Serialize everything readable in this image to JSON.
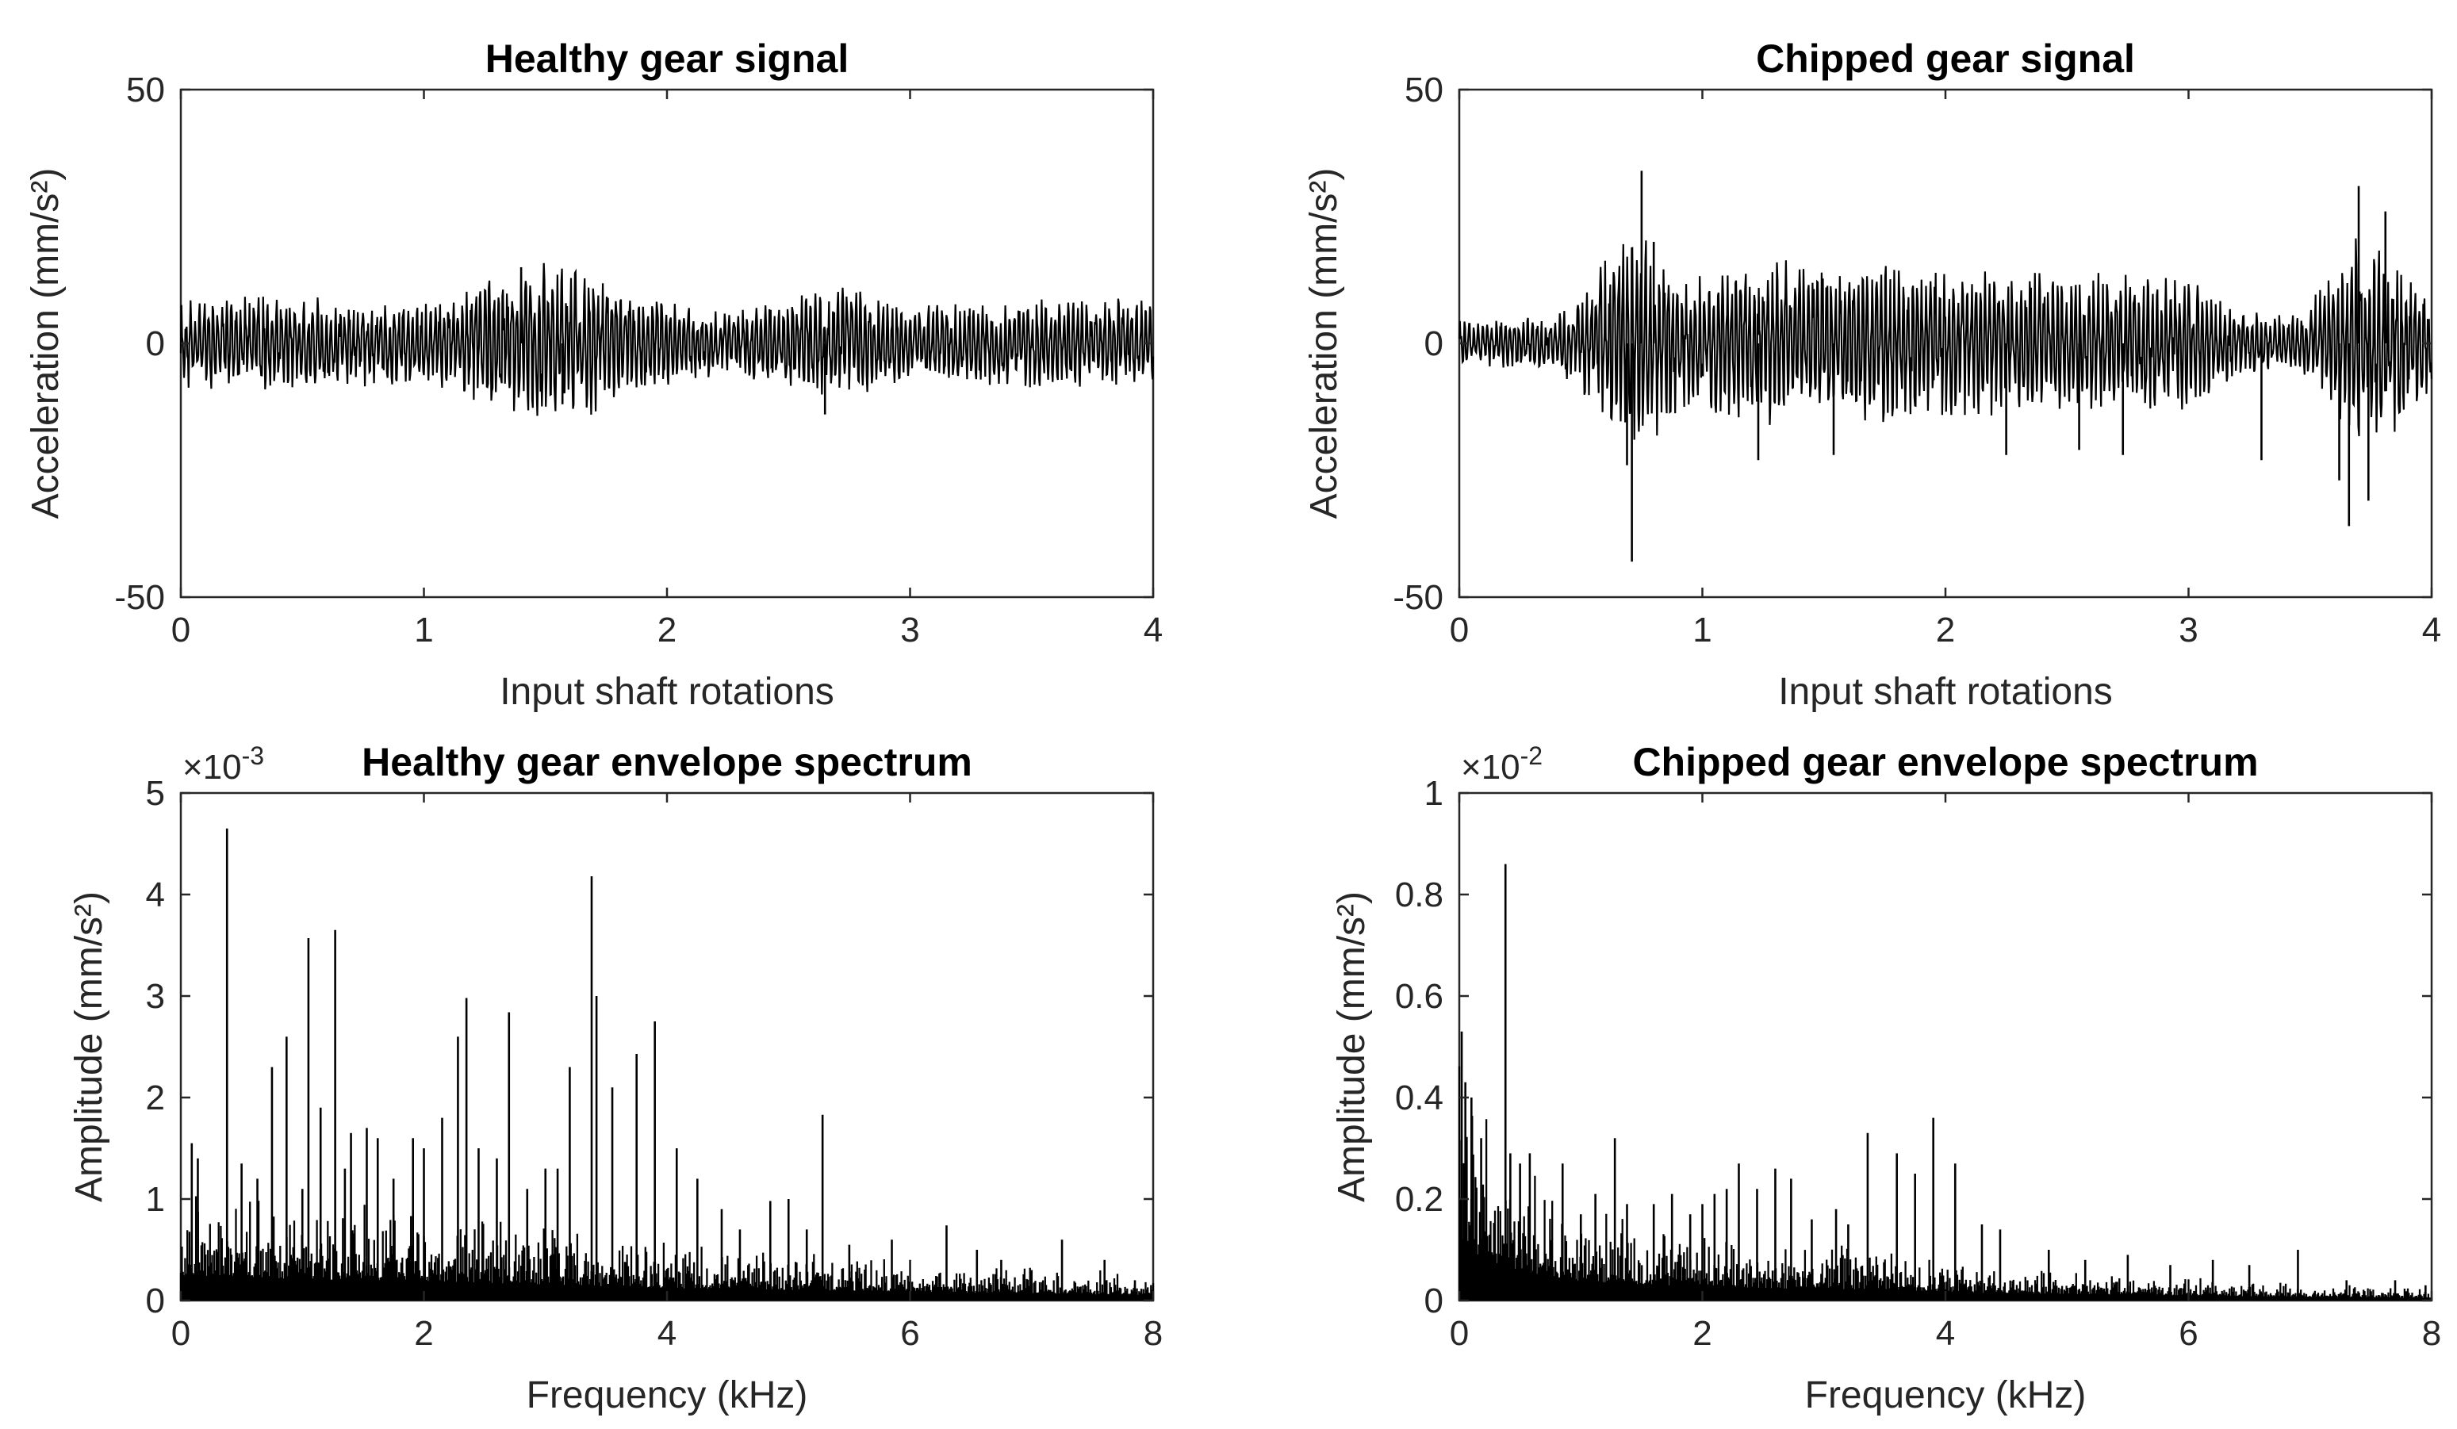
{
  "colors": {
    "trace": "#000000",
    "axis": "#262626",
    "background": "#ffffff"
  },
  "chart_data": [
    {
      "id": "healthy-signal",
      "type": "line",
      "title": "Healthy gear signal",
      "xlabel": "Input shaft rotations",
      "ylabel": "Acceleration (mm/s²)",
      "xlim": [
        0,
        4
      ],
      "ylim": [
        -50,
        50
      ],
      "xticks": [
        0,
        1,
        2,
        3,
        4
      ],
      "yticks": [
        -50,
        0,
        50
      ],
      "ytick_labels": [
        "-50",
        "0",
        "50"
      ],
      "exponent": "",
      "signal": {
        "envelope": [
          [
            0,
            8
          ],
          [
            0.5,
            9
          ],
          [
            1.0,
            7
          ],
          [
            1.3,
            12
          ],
          [
            1.5,
            15
          ],
          [
            1.7,
            13
          ],
          [
            1.9,
            9
          ],
          [
            2.2,
            6
          ],
          [
            2.5,
            8
          ],
          [
            2.7,
            11
          ],
          [
            3.0,
            7
          ],
          [
            3.5,
            8
          ],
          [
            4.0,
            8
          ]
        ],
        "spikes": [
          [
            1.57,
            -12
          ],
          [
            2.65,
            -14
          ],
          [
            1.4,
            15
          ]
        ]
      }
    },
    {
      "id": "chipped-signal",
      "type": "line",
      "title": "Chipped gear signal",
      "xlabel": "Input shaft rotations",
      "ylabel": "Acceleration (mm/s²)",
      "xlim": [
        0,
        4
      ],
      "ylim": [
        -50,
        50
      ],
      "xticks": [
        0,
        1,
        2,
        3,
        4
      ],
      "yticks": [
        -50,
        0,
        50
      ],
      "ytick_labels": [
        "-50",
        "0",
        "50"
      ],
      "exponent": "",
      "signal": {
        "envelope": [
          [
            0,
            4
          ],
          [
            0.4,
            5
          ],
          [
            0.55,
            12
          ],
          [
            0.7,
            22
          ],
          [
            0.8,
            18
          ],
          [
            0.95,
            12
          ],
          [
            1.2,
            16
          ],
          [
            1.5,
            15
          ],
          [
            2.0,
            14
          ],
          [
            2.5,
            13
          ],
          [
            3.0,
            12
          ],
          [
            3.2,
            6
          ],
          [
            3.45,
            5
          ],
          [
            3.6,
            13
          ],
          [
            3.7,
            20
          ],
          [
            3.85,
            16
          ],
          [
            4.0,
            8
          ]
        ],
        "spikes": [
          [
            0.71,
            -43
          ],
          [
            0.75,
            34
          ],
          [
            0.69,
            -24
          ],
          [
            0.8,
            20
          ],
          [
            1.23,
            -23
          ],
          [
            1.54,
            -22
          ],
          [
            2.25,
            -22
          ],
          [
            2.55,
            -21
          ],
          [
            2.73,
            -22
          ],
          [
            3.3,
            -23
          ],
          [
            3.66,
            -36
          ],
          [
            3.7,
            31
          ],
          [
            3.74,
            -31
          ],
          [
            3.62,
            -27
          ],
          [
            3.81,
            26
          ]
        ]
      }
    },
    {
      "id": "healthy-envelope",
      "type": "line",
      "title": "Healthy gear envelope spectrum",
      "xlabel": "Frequency (kHz)",
      "ylabel": "Amplitude (mm/s²)",
      "xlim": [
        0,
        8
      ],
      "ylim": [
        0,
        0.005
      ],
      "xticks": [
        0,
        2,
        4,
        6,
        8
      ],
      "yticks": [
        0,
        0.001,
        0.002,
        0.003,
        0.004,
        0.005
      ],
      "ytick_labels": [
        "0",
        "1",
        "2",
        "3",
        "4",
        "5"
      ],
      "exponent": "×10",
      "exponent_power": "-3",
      "noise_floor": [
        [
          0,
          0.0007
        ],
        [
          1,
          0.0006
        ],
        [
          2,
          0.00055
        ],
        [
          3,
          0.00045
        ],
        [
          4,
          0.00035
        ],
        [
          5,
          0.0003
        ],
        [
          6,
          0.00025
        ],
        [
          7,
          0.0002
        ],
        [
          8,
          0.00015
        ]
      ],
      "peaks": [
        [
          0.09,
          0.00155
        ],
        [
          0.14,
          0.0014
        ],
        [
          0.38,
          0.00465
        ],
        [
          0.5,
          0.00135
        ],
        [
          0.63,
          0.0012
        ],
        [
          0.75,
          0.0023
        ],
        [
          0.87,
          0.0026
        ],
        [
          1.0,
          0.0011
        ],
        [
          1.05,
          0.00357
        ],
        [
          1.15,
          0.0019
        ],
        [
          1.27,
          0.00365
        ],
        [
          1.35,
          0.0013
        ],
        [
          1.4,
          0.00165
        ],
        [
          1.53,
          0.0017
        ],
        [
          1.62,
          0.0016
        ],
        [
          1.75,
          0.0012
        ],
        [
          1.91,
          0.0016
        ],
        [
          2.0,
          0.0015
        ],
        [
          2.15,
          0.0018
        ],
        [
          2.28,
          0.0026
        ],
        [
          2.35,
          0.00298
        ],
        [
          2.45,
          0.0015
        ],
        [
          2.6,
          0.0014
        ],
        [
          2.7,
          0.00284
        ],
        [
          2.85,
          0.0011
        ],
        [
          3.0,
          0.0013
        ],
        [
          3.1,
          0.0013
        ],
        [
          3.2,
          0.0023
        ],
        [
          3.38,
          0.00418
        ],
        [
          3.42,
          0.003
        ],
        [
          3.55,
          0.0021
        ],
        [
          3.75,
          0.00243
        ],
        [
          3.9,
          0.00275
        ],
        [
          4.08,
          0.0015
        ],
        [
          4.25,
          0.0012
        ],
        [
          4.45,
          0.0009
        ],
        [
          4.6,
          0.0007
        ],
        [
          4.85,
          0.00098
        ],
        [
          5.0,
          0.001
        ],
        [
          5.15,
          0.0007
        ],
        [
          5.28,
          0.00183
        ],
        [
          5.5,
          0.00055
        ],
        [
          5.85,
          0.0006
        ],
        [
          6.3,
          0.00074
        ],
        [
          6.55,
          0.0005
        ],
        [
          6.75,
          0.0004
        ],
        [
          7.0,
          0.0003
        ],
        [
          7.25,
          0.0006
        ],
        [
          7.6,
          0.0004
        ],
        [
          7.85,
          0.0002
        ]
      ]
    },
    {
      "id": "chipped-envelope",
      "type": "line",
      "title": "Chipped gear envelope spectrum",
      "xlabel": "Frequency (kHz)",
      "ylabel": "Amplitude (mm/s²)",
      "xlim": [
        0,
        8
      ],
      "ylim": [
        0,
        0.01
      ],
      "xticks": [
        0,
        2,
        4,
        6,
        8
      ],
      "yticks": [
        0,
        0.002,
        0.004,
        0.006,
        0.008,
        0.01
      ],
      "ytick_labels": [
        "0",
        "0.2",
        "0.4",
        "0.6",
        "0.8",
        "1"
      ],
      "exponent": "×10",
      "exponent_power": "-2",
      "noise_floor": [
        [
          0,
          0.0035
        ],
        [
          0.1,
          0.0028
        ],
        [
          0.2,
          0.0022
        ],
        [
          0.4,
          0.0018
        ],
        [
          0.8,
          0.0012
        ],
        [
          1.5,
          0.0009
        ],
        [
          2.5,
          0.0007
        ],
        [
          3.5,
          0.0006
        ],
        [
          4.5,
          0.0004
        ],
        [
          6,
          0.00028
        ],
        [
          7,
          0.0002
        ],
        [
          8,
          0.00015
        ]
      ],
      "peaks": [
        [
          0.02,
          0.0053
        ],
        [
          0.05,
          0.0043
        ],
        [
          0.1,
          0.004
        ],
        [
          0.18,
          0.0032
        ],
        [
          0.38,
          0.0086
        ],
        [
          0.42,
          0.0029
        ],
        [
          0.5,
          0.0027
        ],
        [
          0.58,
          0.0029
        ],
        [
          0.85,
          0.0027
        ],
        [
          1.0,
          0.0017
        ],
        [
          1.12,
          0.0021
        ],
        [
          1.28,
          0.0032
        ],
        [
          1.38,
          0.0019
        ],
        [
          1.6,
          0.0019
        ],
        [
          1.75,
          0.0021
        ],
        [
          1.9,
          0.0017
        ],
        [
          2.0,
          0.0019
        ],
        [
          2.1,
          0.0021
        ],
        [
          2.2,
          0.0022
        ],
        [
          2.3,
          0.0027
        ],
        [
          2.45,
          0.0022
        ],
        [
          2.6,
          0.0026
        ],
        [
          2.73,
          0.0024
        ],
        [
          2.9,
          0.0016
        ],
        [
          3.1,
          0.0018
        ],
        [
          3.2,
          0.0015
        ],
        [
          3.36,
          0.0033
        ],
        [
          3.6,
          0.0029
        ],
        [
          3.75,
          0.0025
        ],
        [
          3.9,
          0.0036
        ],
        [
          4.08,
          0.0027
        ],
        [
          4.3,
          0.0015
        ],
        [
          4.45,
          0.0014
        ],
        [
          4.85,
          0.001
        ],
        [
          5.15,
          0.0008
        ],
        [
          5.5,
          0.0009
        ],
        [
          5.85,
          0.0007
        ],
        [
          6.2,
          0.0008
        ],
        [
          6.5,
          0.0007
        ],
        [
          6.9,
          0.001
        ],
        [
          7.3,
          0.0004
        ],
        [
          7.7,
          0.0004
        ],
        [
          7.95,
          0.0003
        ]
      ]
    }
  ]
}
